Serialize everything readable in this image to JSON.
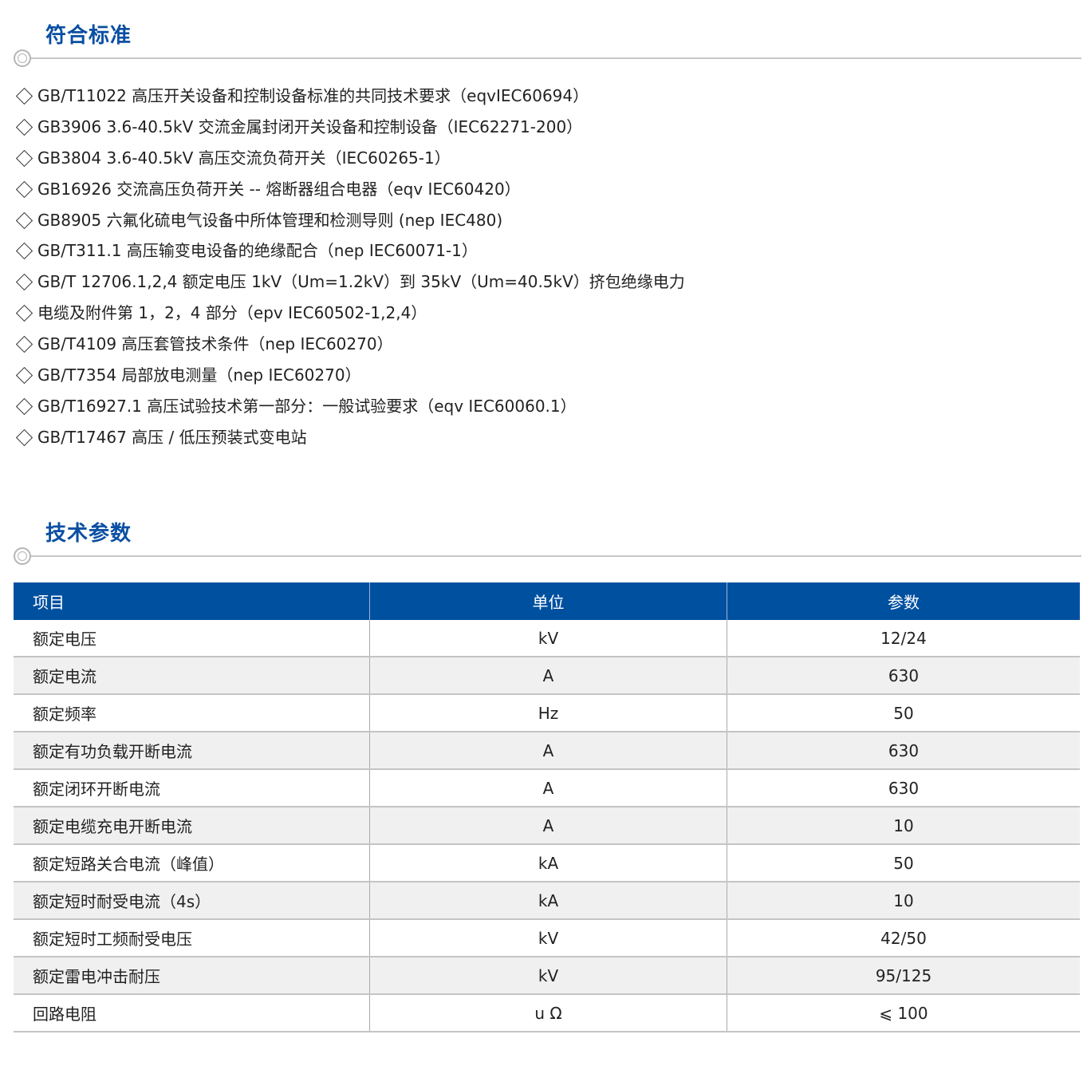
{
  "standards": {
    "title": "符合标准",
    "items": [
      "GB/T11022 高压开关设备和控制设备标准的共同技术要求（eqvIEC60694）",
      "GB3906 3.6-40.5kV 交流金属封闭开关设备和控制设备（IEC62271-200）",
      "GB3804 3.6-40.5kV 高压交流负荷开关（IEC60265-1）",
      "GB16926 交流高压负荷开关 -- 熔断器组合电器（eqv IEC60420）",
      "GB8905 六氟化硫电气设备中所体管理和检测导则 (nep IEC480)",
      "GB/T311.1 高压输变电设备的绝缘配合（nep IEC60071-1）",
      "GB/T 12706.1,2,4 额定电压 1kV（Um=1.2kV）到 35kV（Um=40.5kV）挤包绝缘电力",
      "电缆及附件第 1，2，4 部分（epv IEC60502-1,2,4）",
      "GB/T4109 高压套管技术条件（nep IEC60270）",
      "GB/T7354 局部放电测量（nep IEC60270）",
      "GB/T16927.1 高压试验技术第一部分：一般试验要求（eqv IEC60060.1）",
      "GB/T17467 高压 / 低压预装式变电站"
    ]
  },
  "params": {
    "title": "技术参数",
    "headers": [
      "项目",
      "单位",
      "参数"
    ],
    "rows": [
      [
        "额定电压",
        "kV",
        "12/24"
      ],
      [
        "额定电流",
        "A",
        "630"
      ],
      [
        "额定频率",
        "Hz",
        "50"
      ],
      [
        "额定有功负载开断电流",
        "A",
        "630"
      ],
      [
        "额定闭环开断电流",
        "A",
        "630"
      ],
      [
        "额定电缆充电开断电流",
        "A",
        "10"
      ],
      [
        "额定短路关合电流（峰值）",
        "kA",
        "50"
      ],
      [
        "额定短时耐受电流（4s）",
        "kA",
        "10"
      ],
      [
        "额定短时工频耐受电压",
        "kV",
        "42/50"
      ],
      [
        "额定雷电冲击耐压",
        "kV",
        "95/125"
      ],
      [
        "回路电阻",
        "u Ω",
        "⩽ 100"
      ]
    ]
  },
  "colors": {
    "accent": "#0a4fa3",
    "header_bg": "#0050a0",
    "alt_row": "#f0f0f0"
  }
}
